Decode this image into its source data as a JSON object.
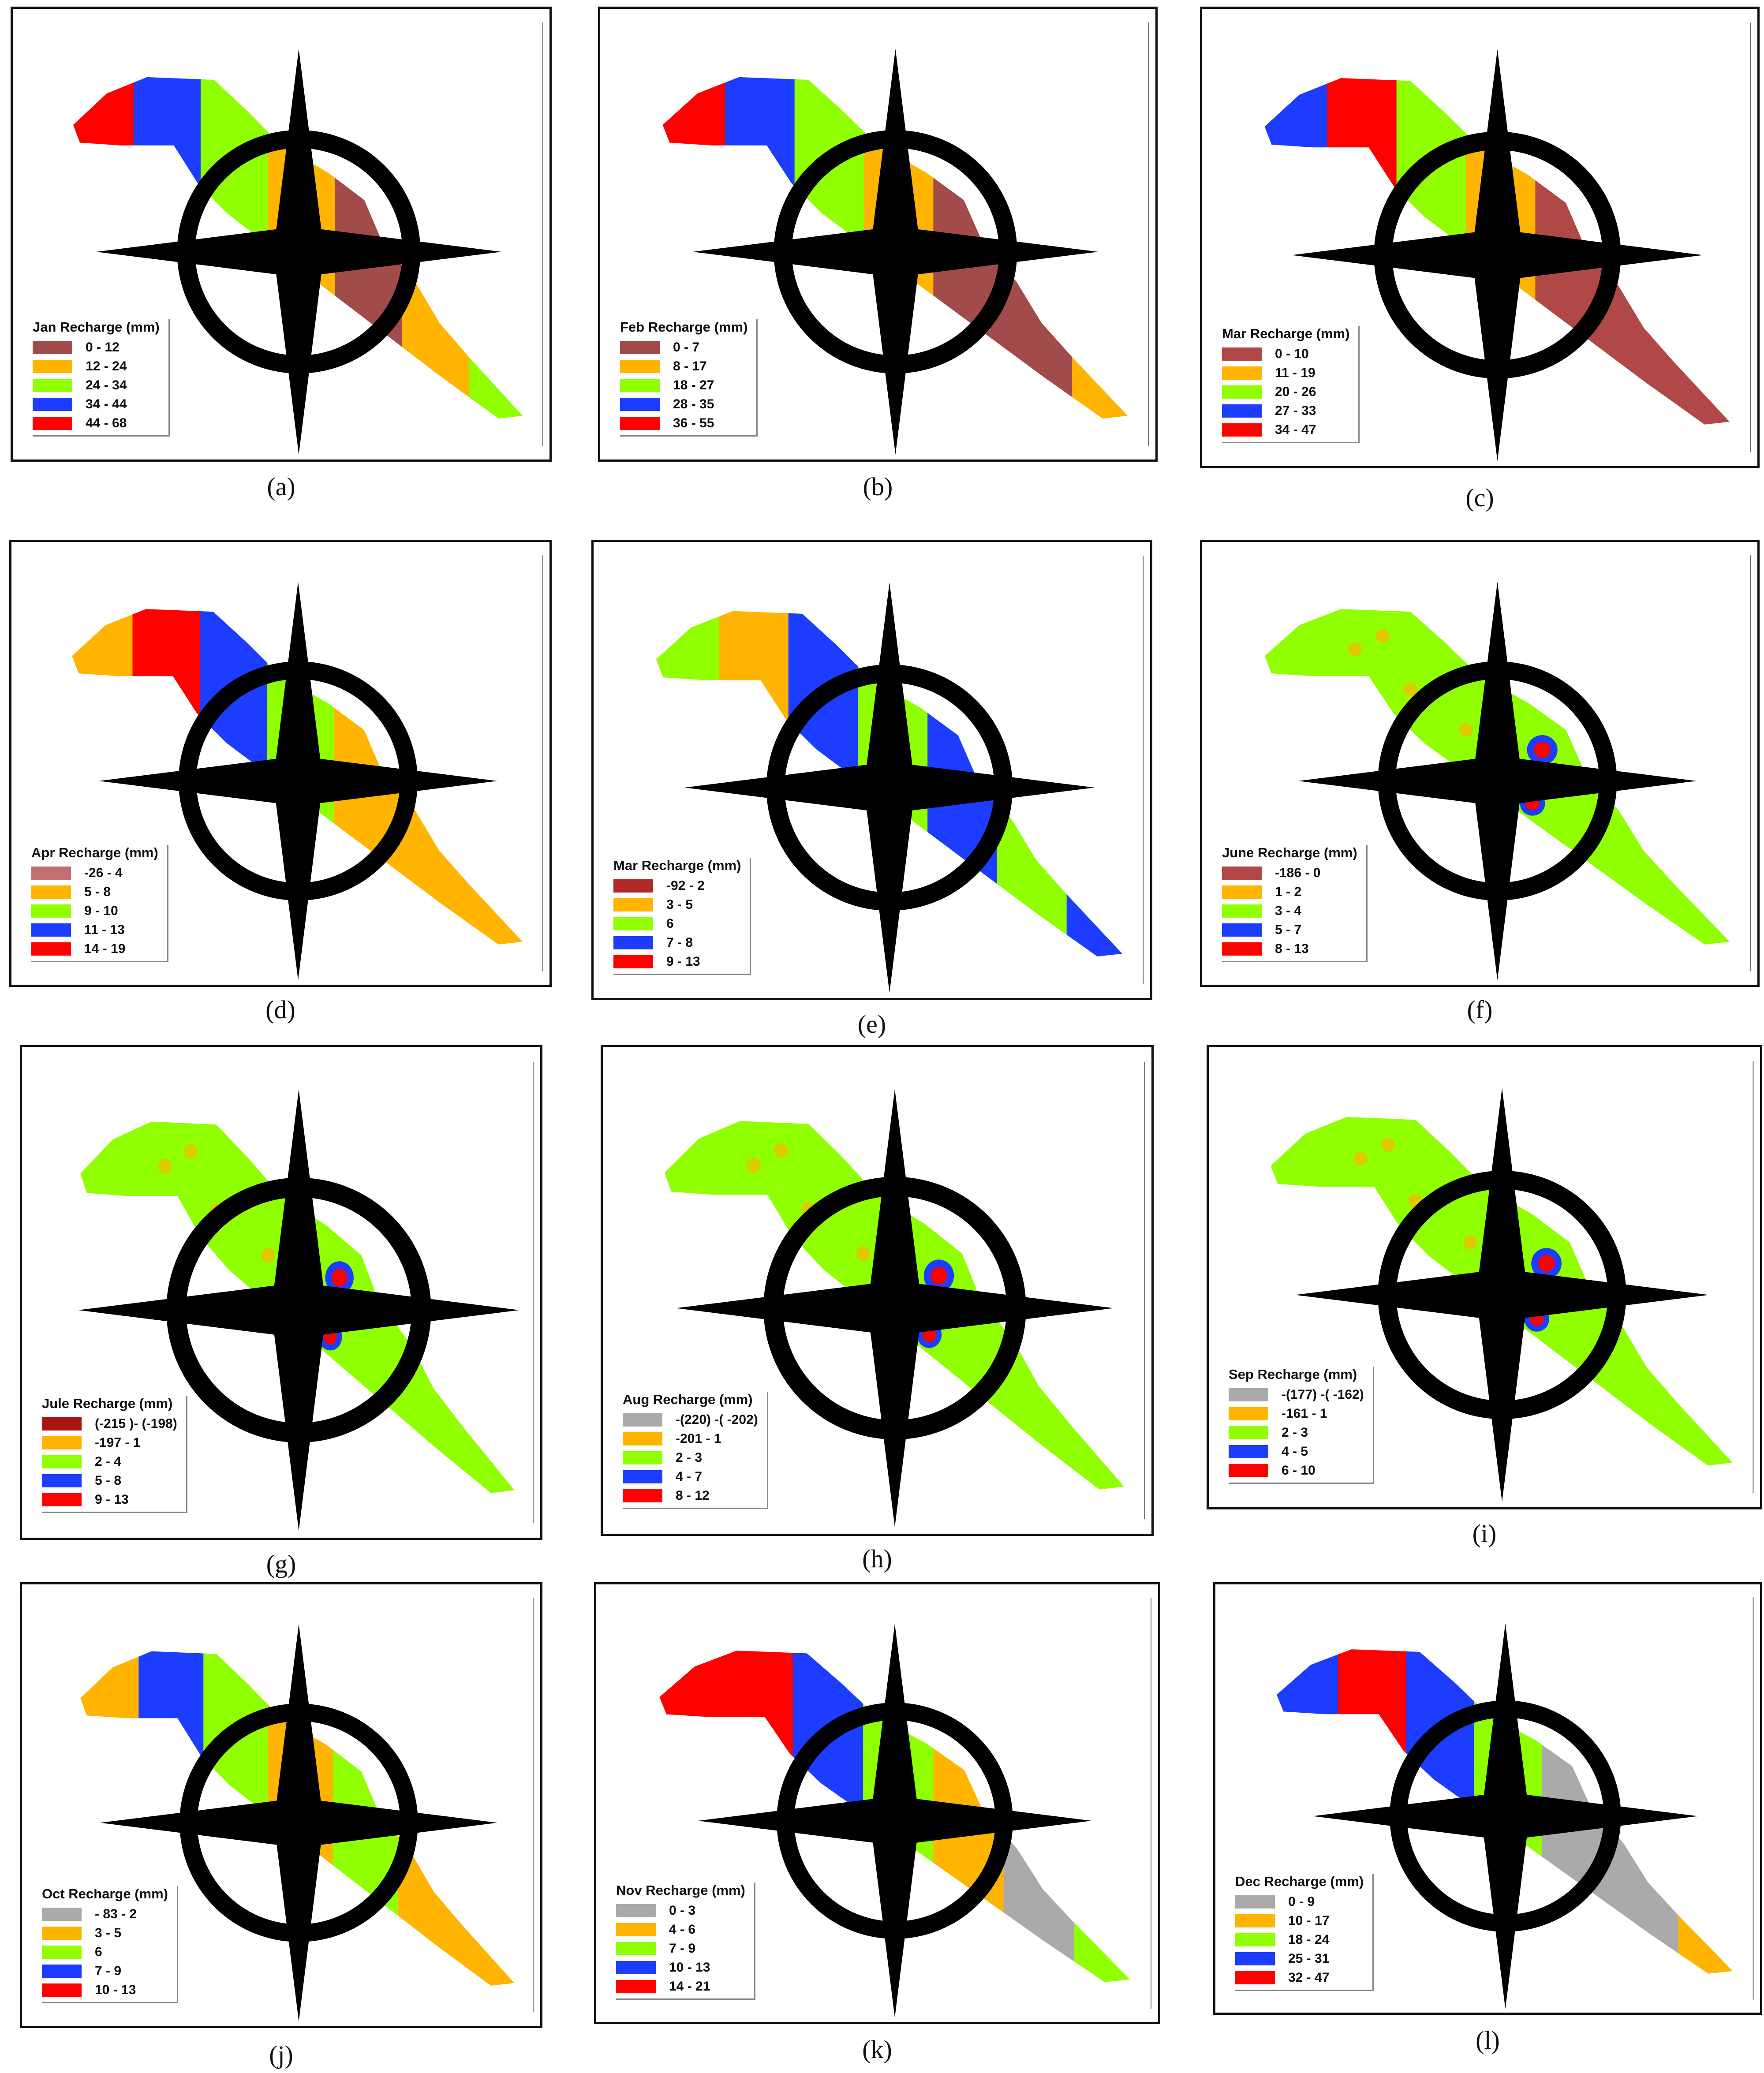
{
  "panels": [
    {
      "caption": "(a)",
      "legend_title": "Jan Recharge (mm)",
      "classes": [
        {
          "label": "0 - 12",
          "color": "#a24b4b"
        },
        {
          "label": "12 - 24",
          "color": "#ffb400"
        },
        {
          "label": "24 - 34",
          "color": "#90ff00"
        },
        {
          "label": "34 - 44",
          "color": "#1c3cff"
        },
        {
          "label": "44 - 68",
          "color": "#ff0000"
        }
      ]
    },
    {
      "caption": "(b)",
      "legend_title": "Feb Recharge (mm)",
      "classes": [
        {
          "label": "0 - 7",
          "color": "#a24b4b"
        },
        {
          "label": "8 - 17",
          "color": "#ffb400"
        },
        {
          "label": "18 - 27",
          "color": "#90ff00"
        },
        {
          "label": "28 - 35",
          "color": "#1c3cff"
        },
        {
          "label": "36 - 55",
          "color": "#ff0000"
        }
      ]
    },
    {
      "caption": "(c)",
      "legend_title": "Mar Recharge (mm)",
      "classes": [
        {
          "label": "0 - 10",
          "color": "#b04848"
        },
        {
          "label": "11 - 19",
          "color": "#ffb400"
        },
        {
          "label": "20 - 26",
          "color": "#90ff00"
        },
        {
          "label": "27 - 33",
          "color": "#1c3cff"
        },
        {
          "label": "34 - 47",
          "color": "#ff0000"
        }
      ]
    },
    {
      "caption": "(d)",
      "legend_title": "Apr Recharge (mm)",
      "classes": [
        {
          "label": "-26 - 4",
          "color": "#c07070"
        },
        {
          "label": "5 - 8",
          "color": "#ffb400"
        },
        {
          "label": "9 - 10",
          "color": "#90ff00"
        },
        {
          "label": "11 - 13",
          "color": "#1c3cff"
        },
        {
          "label": "14 - 19",
          "color": "#ff0000"
        }
      ]
    },
    {
      "caption": "(e)",
      "legend_title": "Mar Recharge (mm)",
      "classes": [
        {
          "label": "-92 - 2",
          "color": "#b02a2a"
        },
        {
          "label": "3 - 5",
          "color": "#ffb400"
        },
        {
          "label": "6",
          "color": "#90ff00"
        },
        {
          "label": "7 - 8",
          "color": "#1c3cff"
        },
        {
          "label": "9 - 13",
          "color": "#ff0000"
        }
      ]
    },
    {
      "caption": "(f)",
      "legend_title": "June Recharge (mm)",
      "classes": [
        {
          "label": "-186 - 0",
          "color": "#b04848"
        },
        {
          "label": "1 - 2",
          "color": "#ffb400"
        },
        {
          "label": "3 - 4",
          "color": "#90ff00"
        },
        {
          "label": "5 - 7",
          "color": "#1c3cff"
        },
        {
          "label": "8 - 13",
          "color": "#ff0000"
        }
      ]
    },
    {
      "caption": "(g)",
      "legend_title": "Jule Recharge (mm)",
      "classes": [
        {
          "label": "(-215 )- (-198)",
          "color": "#a81414"
        },
        {
          "label": "-197 - 1",
          "color": "#ffb400"
        },
        {
          "label": "2 - 4",
          "color": "#90ff00"
        },
        {
          "label": "5 - 8",
          "color": "#1c3cff"
        },
        {
          "label": "9 - 13",
          "color": "#ff0000"
        }
      ]
    },
    {
      "caption": "(h)",
      "legend_title": "Aug Recharge (mm)",
      "classes": [
        {
          "label": "-(220) -( -202)",
          "color": "#aaaaaa"
        },
        {
          "label": "-201 - 1",
          "color": "#ffb400"
        },
        {
          "label": "2 - 3",
          "color": "#90ff00"
        },
        {
          "label": "4 - 7",
          "color": "#1c3cff"
        },
        {
          "label": "8 - 12",
          "color": "#ff0000"
        }
      ]
    },
    {
      "caption": "(i)",
      "legend_title": "Sep Recharge (mm)",
      "classes": [
        {
          "label": "-(177) -( -162)",
          "color": "#aaaaaa"
        },
        {
          "label": "-161 - 1",
          "color": "#ffb400"
        },
        {
          "label": "2 - 3",
          "color": "#90ff00"
        },
        {
          "label": "4 - 5",
          "color": "#1c3cff"
        },
        {
          "label": "6 - 10",
          "color": "#ff0000"
        }
      ]
    },
    {
      "caption": "(j)",
      "legend_title": "Oct Recharge (mm)",
      "classes": [
        {
          "label": "- 83 - 2",
          "color": "#aaaaaa"
        },
        {
          "label": "3 - 5",
          "color": "#ffb400"
        },
        {
          "label": "6",
          "color": "#90ff00"
        },
        {
          "label": "7 - 9",
          "color": "#1c3cff"
        },
        {
          "label": "10 - 13",
          "color": "#ff0000"
        }
      ]
    },
    {
      "caption": "(k)",
      "legend_title": "Nov Recharge (mm)",
      "classes": [
        {
          "label": "0 - 3",
          "color": "#aaaaaa"
        },
        {
          "label": "4 - 6",
          "color": "#ffb400"
        },
        {
          "label": "7 - 9",
          "color": "#90ff00"
        },
        {
          "label": "10 - 13",
          "color": "#1c3cff"
        },
        {
          "label": "14 - 21",
          "color": "#ff0000"
        }
      ]
    },
    {
      "caption": "(l)",
      "legend_title": "Dec Recharge (mm)",
      "classes": [
        {
          "label": "0 - 9",
          "color": "#aaaaaa"
        },
        {
          "label": "10 - 17",
          "color": "#ffb400"
        },
        {
          "label": "18 - 24",
          "color": "#90ff00"
        },
        {
          "label": "25 - 31",
          "color": "#1c3cff"
        },
        {
          "label": "32 - 47",
          "color": "#ff0000"
        }
      ]
    }
  ]
}
